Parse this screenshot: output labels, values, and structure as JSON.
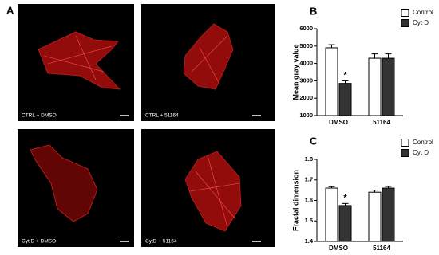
{
  "figure_label": "A",
  "images": [
    {
      "label": "CTRL + DMSO"
    },
    {
      "label": "CTRL + 51164"
    },
    {
      "label": "Cyt D + DMSO"
    },
    {
      "label": "CytD + 51164"
    }
  ],
  "chart_data": [
    {
      "type": "bar",
      "label": "B",
      "y_label": "Mean gray value",
      "categories": [
        "DMSO",
        "51164"
      ],
      "series": [
        {
          "name": "Control",
          "color": "#ffffff",
          "values": [
            4900,
            4300
          ],
          "errors": [
            180,
            250
          ]
        },
        {
          "name": "Cyt D",
          "color": "#333333",
          "values": [
            2850,
            4300
          ],
          "errors": [
            150,
            250
          ]
        }
      ],
      "annotations": [
        "*"
      ],
      "ylim": [
        1000,
        6000
      ],
      "yticks": [
        1000,
        2000,
        3000,
        4000,
        5000,
        6000
      ]
    },
    {
      "type": "bar",
      "label": "C",
      "y_label": "Fractal dimension",
      "categories": [
        "DMSO",
        "51164"
      ],
      "series": [
        {
          "name": "Control",
          "color": "#ffffff",
          "values": [
            1.66,
            1.64
          ],
          "errors": [
            0.007,
            0.01
          ]
        },
        {
          "name": "Cyt D",
          "color": "#333333",
          "values": [
            1.575,
            1.66
          ],
          "errors": [
            0.01,
            0.008
          ]
        }
      ],
      "annotations": [
        "*"
      ],
      "ylim": [
        1.4,
        1.8
      ],
      "yticks": [
        1.4,
        1.5,
        1.6,
        1.7,
        1.8
      ]
    }
  ]
}
